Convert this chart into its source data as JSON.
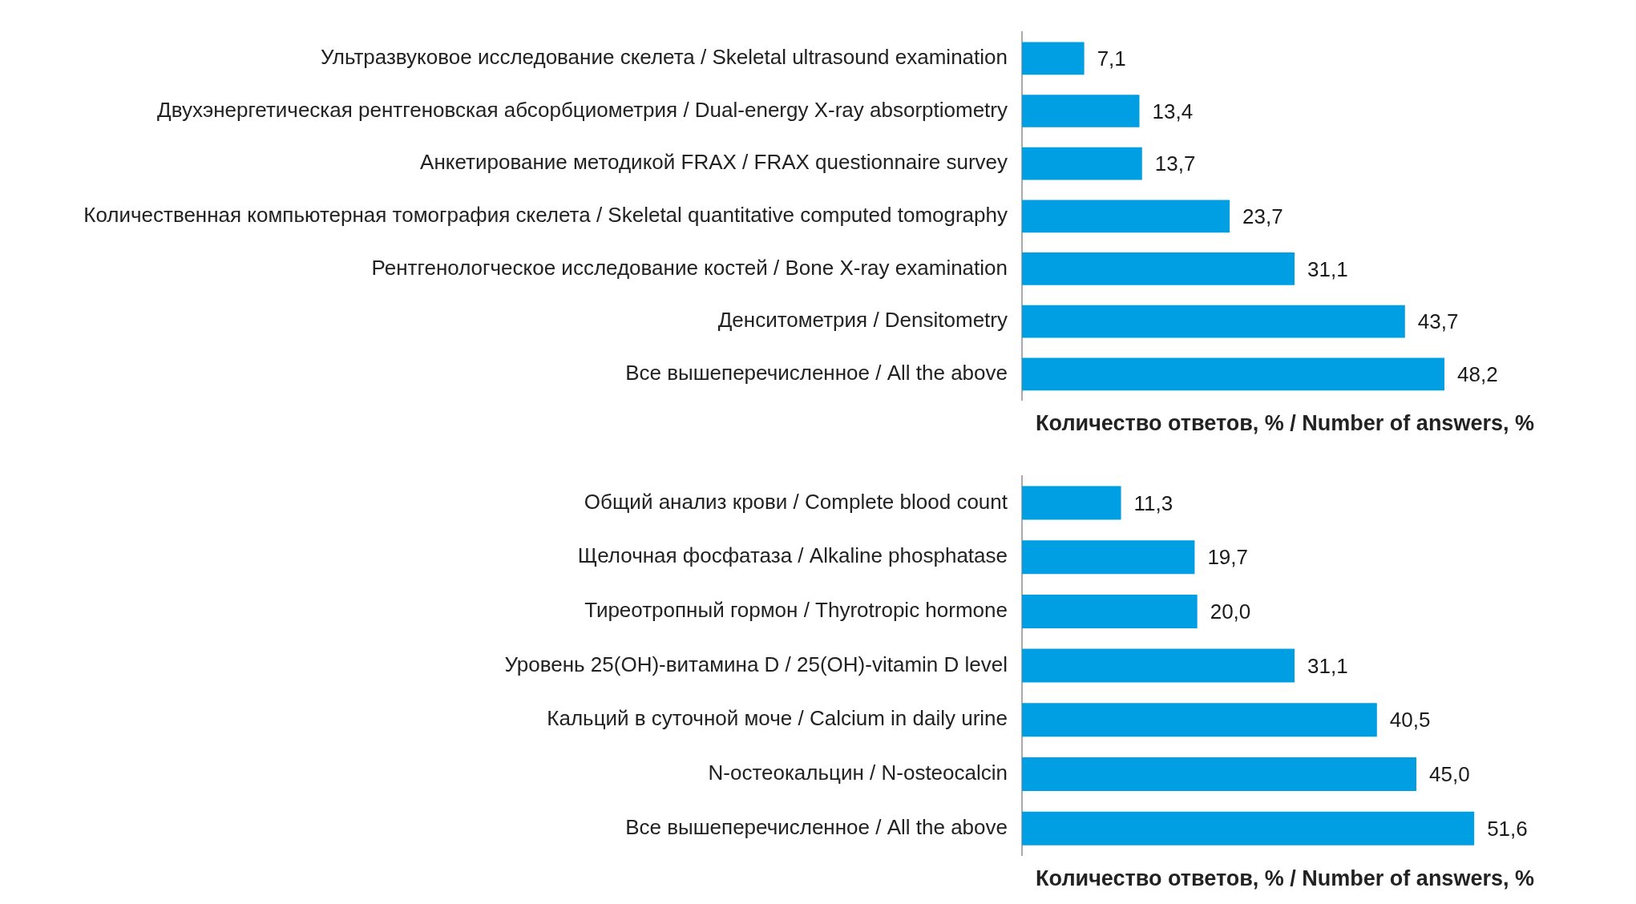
{
  "chart_data": [
    {
      "type": "bar",
      "orientation": "horizontal",
      "xlabel": "Количество ответов, % / Number of answers, %",
      "categories": [
        "Ультразвуковое исследование скелета / Skeletal ultrasound examination",
        "Двухэнергетическая рентгеновская абсорбциометрия / Dual-energy X-ray absorptiometry",
        "Анкетирование методикой FRAX / FRAX questionnaire survey",
        "Количественная компьютерная томография скелета / Skeletal quantitative computed tomography",
        "Рентгенологческое исследование костей / Bone X-ray examination",
        "Денситометрия / Densitometry",
        "Все вышеперечисленное / All the above"
      ],
      "values": [
        7.1,
        13.4,
        13.7,
        23.7,
        31.1,
        43.7,
        48.2
      ],
      "color": "#009fe3",
      "value_labels": [
        "7,1",
        "13,4",
        "13,7",
        "23,7",
        "31,1",
        "43,7",
        "48,2"
      ],
      "tick_labels": "y",
      "grid": false,
      "legend": false
    },
    {
      "type": "bar",
      "orientation": "horizontal",
      "xlabel": "Количество ответов, % / Number of answers, %",
      "categories": [
        "Общий анализ крови / Complete blood count",
        "Щелочная фосфатаза / Alkaline phosphatase",
        "Тиреотропный гормон / Thyrotropic hormone",
        "Уровень 25(OH)-витамина D / 25(OH)-vitamin D level",
        "Кальций в суточной моче / Calcium in daily urine",
        "N-остеокальцин / N-osteocalcin",
        "Все вышеперечисленное / All the above"
      ],
      "values": [
        11.3,
        19.7,
        20.0,
        31.1,
        40.5,
        45.0,
        51.6
      ],
      "color": "#009fe3",
      "value_labels": [
        "11,3",
        "19,7",
        "20,0",
        "31,1",
        "40,5",
        "45,0",
        "51,6"
      ],
      "tick_labels": "y",
      "grid": false,
      "legend": false
    }
  ]
}
